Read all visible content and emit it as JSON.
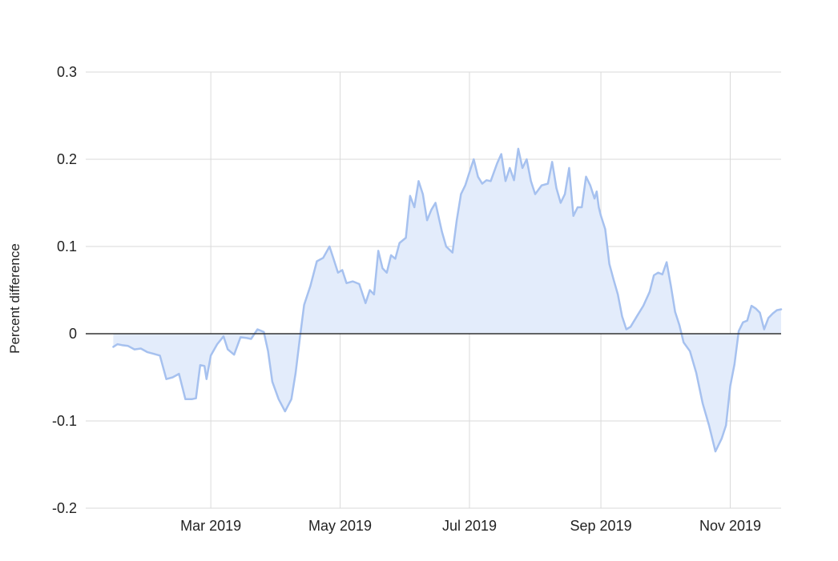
{
  "chart_data": {
    "type": "area",
    "title": "",
    "xlabel": "",
    "ylabel": "Percent difference",
    "ylim": [
      -0.2,
      0.3
    ],
    "xlim": [
      "2019-01-01",
      "2019-11-25"
    ],
    "y_ticks": [
      {
        "value": 0.3,
        "label": "0.3"
      },
      {
        "value": 0.2,
        "label": "0.2"
      },
      {
        "value": 0.1,
        "label": "0.1"
      },
      {
        "value": 0,
        "label": "0"
      },
      {
        "value": -0.1,
        "label": "-0.1"
      },
      {
        "value": -0.2,
        "label": "-0.2"
      }
    ],
    "x_ticks": [
      {
        "date": "2019-03-01",
        "label": "Mar 2019"
      },
      {
        "date": "2019-05-01",
        "label": "May 2019"
      },
      {
        "date": "2019-07-01",
        "label": "Jul 2019"
      },
      {
        "date": "2019-09-01",
        "label": "Sep 2019"
      },
      {
        "date": "2019-11-01",
        "label": "Nov 2019"
      }
    ],
    "grid": true,
    "legend": "none",
    "colors": {
      "line": "#a6c1ef",
      "fill": "#e3ecfb",
      "grid": "#dadada",
      "zero_line": "#333333"
    },
    "series": [
      {
        "points": [
          [
            "2019-01-14",
            -0.015
          ],
          [
            "2019-01-16",
            -0.012
          ],
          [
            "2019-01-18",
            -0.013
          ],
          [
            "2019-01-21",
            -0.014
          ],
          [
            "2019-01-24",
            -0.018
          ],
          [
            "2019-01-27",
            -0.017
          ],
          [
            "2019-01-30",
            -0.021
          ],
          [
            "2019-02-02",
            -0.023
          ],
          [
            "2019-02-05",
            -0.025
          ],
          [
            "2019-02-08",
            -0.052
          ],
          [
            "2019-02-11",
            -0.05
          ],
          [
            "2019-02-14",
            -0.046
          ],
          [
            "2019-02-17",
            -0.075
          ],
          [
            "2019-02-20",
            -0.075
          ],
          [
            "2019-02-22",
            -0.074
          ],
          [
            "2019-02-24",
            -0.036
          ],
          [
            "2019-02-26",
            -0.037
          ],
          [
            "2019-02-27",
            -0.052
          ],
          [
            "2019-03-01",
            -0.025
          ],
          [
            "2019-03-04",
            -0.012
          ],
          [
            "2019-03-07",
            -0.003
          ],
          [
            "2019-03-09",
            -0.018
          ],
          [
            "2019-03-12",
            -0.024
          ],
          [
            "2019-03-15",
            -0.004
          ],
          [
            "2019-03-18",
            -0.005
          ],
          [
            "2019-03-20",
            -0.006
          ],
          [
            "2019-03-23",
            0.005
          ],
          [
            "2019-03-26",
            0.002
          ],
          [
            "2019-03-28",
            -0.02
          ],
          [
            "2019-03-30",
            -0.055
          ],
          [
            "2019-04-02",
            -0.075
          ],
          [
            "2019-04-05",
            -0.089
          ],
          [
            "2019-04-08",
            -0.075
          ],
          [
            "2019-04-10",
            -0.045
          ],
          [
            "2019-04-12",
            -0.005
          ],
          [
            "2019-04-14",
            0.033
          ],
          [
            "2019-04-17",
            0.055
          ],
          [
            "2019-04-20",
            0.083
          ],
          [
            "2019-04-23",
            0.087
          ],
          [
            "2019-04-26",
            0.1
          ],
          [
            "2019-04-28",
            0.085
          ],
          [
            "2019-04-30",
            0.07
          ],
          [
            "2019-05-02",
            0.073
          ],
          [
            "2019-05-04",
            0.058
          ],
          [
            "2019-05-07",
            0.06
          ],
          [
            "2019-05-10",
            0.057
          ],
          [
            "2019-05-13",
            0.035
          ],
          [
            "2019-05-15",
            0.05
          ],
          [
            "2019-05-17",
            0.045
          ],
          [
            "2019-05-19",
            0.095
          ],
          [
            "2019-05-21",
            0.075
          ],
          [
            "2019-05-23",
            0.07
          ],
          [
            "2019-05-25",
            0.09
          ],
          [
            "2019-05-27",
            0.086
          ],
          [
            "2019-05-29",
            0.104
          ],
          [
            "2019-06-01",
            0.11
          ],
          [
            "2019-06-03",
            0.158
          ],
          [
            "2019-06-05",
            0.145
          ],
          [
            "2019-06-07",
            0.175
          ],
          [
            "2019-06-09",
            0.16
          ],
          [
            "2019-06-11",
            0.13
          ],
          [
            "2019-06-13",
            0.142
          ],
          [
            "2019-06-15",
            0.15
          ],
          [
            "2019-06-18",
            0.117
          ],
          [
            "2019-06-20",
            0.1
          ],
          [
            "2019-06-23",
            0.093
          ],
          [
            "2019-06-25",
            0.13
          ],
          [
            "2019-06-27",
            0.16
          ],
          [
            "2019-06-29",
            0.17
          ],
          [
            "2019-07-01",
            0.185
          ],
          [
            "2019-07-03",
            0.2
          ],
          [
            "2019-07-05",
            0.18
          ],
          [
            "2019-07-07",
            0.172
          ],
          [
            "2019-07-09",
            0.176
          ],
          [
            "2019-07-11",
            0.175
          ],
          [
            "2019-07-14",
            0.195
          ],
          [
            "2019-07-16",
            0.206
          ],
          [
            "2019-07-18",
            0.175
          ],
          [
            "2019-07-20",
            0.19
          ],
          [
            "2019-07-22",
            0.176
          ],
          [
            "2019-07-24",
            0.212
          ],
          [
            "2019-07-26",
            0.19
          ],
          [
            "2019-07-28",
            0.2
          ],
          [
            "2019-07-30",
            0.175
          ],
          [
            "2019-08-01",
            0.16
          ],
          [
            "2019-08-04",
            0.17
          ],
          [
            "2019-08-07",
            0.172
          ],
          [
            "2019-08-09",
            0.197
          ],
          [
            "2019-08-11",
            0.167
          ],
          [
            "2019-08-13",
            0.15
          ],
          [
            "2019-08-15",
            0.16
          ],
          [
            "2019-08-17",
            0.19
          ],
          [
            "2019-08-19",
            0.135
          ],
          [
            "2019-08-21",
            0.145
          ],
          [
            "2019-08-23",
            0.145
          ],
          [
            "2019-08-25",
            0.18
          ],
          [
            "2019-08-27",
            0.17
          ],
          [
            "2019-08-29",
            0.155
          ],
          [
            "2019-08-30",
            0.163
          ],
          [
            "2019-08-31",
            0.145
          ],
          [
            "2019-09-01",
            0.135
          ],
          [
            "2019-09-03",
            0.12
          ],
          [
            "2019-09-05",
            0.08
          ],
          [
            "2019-09-07",
            0.062
          ],
          [
            "2019-09-09",
            0.045
          ],
          [
            "2019-09-11",
            0.02
          ],
          [
            "2019-09-13",
            0.005
          ],
          [
            "2019-09-15",
            0.008
          ],
          [
            "2019-09-18",
            0.02
          ],
          [
            "2019-09-21",
            0.032
          ],
          [
            "2019-09-24",
            0.048
          ],
          [
            "2019-09-26",
            0.067
          ],
          [
            "2019-09-28",
            0.07
          ],
          [
            "2019-09-30",
            0.068
          ],
          [
            "2019-10-02",
            0.082
          ],
          [
            "2019-10-04",
            0.055
          ],
          [
            "2019-10-06",
            0.025
          ],
          [
            "2019-10-08",
            0.01
          ],
          [
            "2019-10-10",
            -0.01
          ],
          [
            "2019-10-13",
            -0.02
          ],
          [
            "2019-10-16",
            -0.045
          ],
          [
            "2019-10-19",
            -0.08
          ],
          [
            "2019-10-22",
            -0.105
          ],
          [
            "2019-10-25",
            -0.135
          ],
          [
            "2019-10-28",
            -0.12
          ],
          [
            "2019-10-30",
            -0.105
          ],
          [
            "2019-11-01",
            -0.06
          ],
          [
            "2019-11-03",
            -0.035
          ],
          [
            "2019-11-05",
            0.003
          ],
          [
            "2019-11-07",
            0.013
          ],
          [
            "2019-11-09",
            0.015
          ],
          [
            "2019-11-11",
            0.032
          ],
          [
            "2019-11-13",
            0.029
          ],
          [
            "2019-11-15",
            0.024
          ],
          [
            "2019-11-17",
            0.005
          ],
          [
            "2019-11-19",
            0.018
          ],
          [
            "2019-11-21",
            0.023
          ],
          [
            "2019-11-23",
            0.027
          ],
          [
            "2019-11-25",
            0.028
          ]
        ]
      }
    ]
  }
}
